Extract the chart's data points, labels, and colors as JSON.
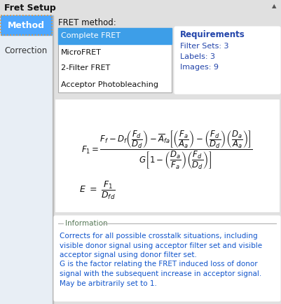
{
  "title": "Fret Setup",
  "bg_color": "#e0e0e0",
  "sidebar_bg": "#e8eef5",
  "main_bg": "#f5f5f5",
  "white": "#ffffff",
  "method_tab_bg": "#4da6ff",
  "method_tab_border": "#e8922a",
  "fret_method_label": "FRET method:",
  "methods": [
    "Complete FRET",
    "MicroFRET",
    "2-Filter FRET",
    "Acceptor Photobleaching"
  ],
  "selected_method": "Complete FRET",
  "selected_bg": "#3d9ee8",
  "selected_text": "#ffffff",
  "requirements_title": "Requirements",
  "requirements": [
    "Filter Sets: 3",
    "Labels: 3",
    "Images: 9"
  ],
  "req_color": "#2244aa",
  "info_title": "Information",
  "info_text": "Corrects for all possible crosstalk situations, including\nvisible donor signal using acceptor filter set and visible\nacceptor signal using donor filter set.\nG is the factor relating the FRET induced loss of donor\nsignal with the subsequent increase in acceptor signal.\nMay be arbitrarily set to 1.",
  "info_text_color": "#1155cc",
  "border_color": "#aaaaaa",
  "title_color": "#111111",
  "correction_color": "#333333"
}
